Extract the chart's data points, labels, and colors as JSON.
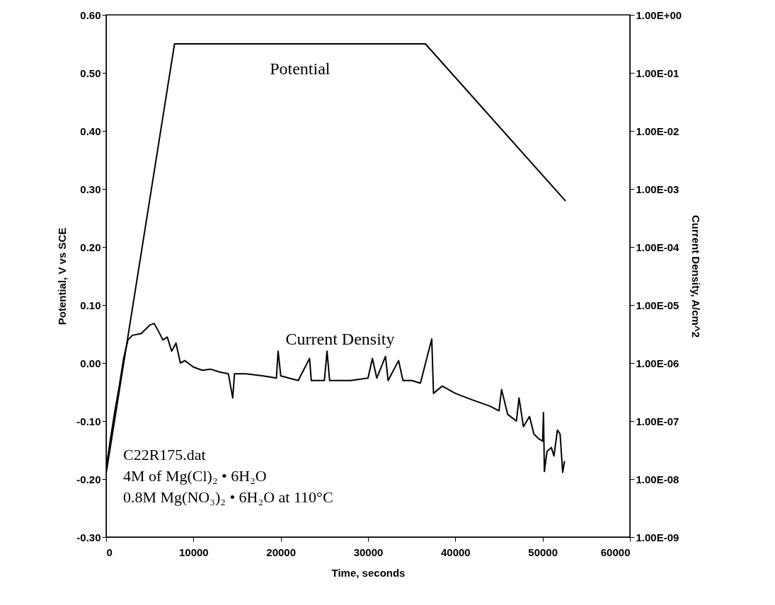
{
  "chart_data": {
    "type": "line",
    "xlabel": "Time, seconds",
    "ylabel": "Potential, V vs SCE",
    "y2label": "Current Density, A/cm^2",
    "xlim": [
      0,
      60000
    ],
    "xticks": [
      0,
      10000,
      20000,
      30000,
      40000,
      50000,
      60000
    ],
    "ylim": [
      -0.3,
      0.6
    ],
    "yticks": [
      {
        "value": -0.3,
        "label": "-0.30"
      },
      {
        "value": -0.2,
        "label": "-0.20"
      },
      {
        "value": -0.1,
        "label": "-0.10"
      },
      {
        "value": 0,
        "label": "0.00"
      },
      {
        "value": 0.1,
        "label": "0.10"
      },
      {
        "value": 0.2,
        "label": "0.20"
      },
      {
        "value": 0.3,
        "label": "0.30"
      },
      {
        "value": 0.4,
        "label": "0.40"
      },
      {
        "value": 0.5,
        "label": "0.50"
      },
      {
        "value": 0.6,
        "label": "0.60"
      }
    ],
    "y2lim": [
      1e-09,
      1
    ],
    "y2ticks": [
      {
        "value": 1e-09,
        "label": "1.00E-09"
      },
      {
        "value": 1e-08,
        "label": "1.00E-08"
      },
      {
        "value": 1e-07,
        "label": "1.00E-07"
      },
      {
        "value": 1e-06,
        "label": "1.00E-06"
      },
      {
        "value": 1e-05,
        "label": "1.00E-05"
      },
      {
        "value": 0.0001,
        "label": "1.00E-04"
      },
      {
        "value": 0.001,
        "label": "1.00E-03"
      },
      {
        "value": 0.01,
        "label": "1.00E-02"
      },
      {
        "value": 0.1,
        "label": "1.00E-01"
      },
      {
        "value": 1,
        "label": "1.00E+00"
      }
    ],
    "log": "y2",
    "grid": false,
    "series": [
      {
        "name": "Potential",
        "color": "#000000",
        "x": [
          0,
          7830,
          36570,
          52580
        ],
        "values": [
          -0.19,
          0.55,
          0.55,
          0.28
        ]
      },
      {
        "name": "Current Density",
        "color": "#000000",
        "axis": "y2",
        "x": [
          0,
          500,
          1000,
          1500,
          2000,
          2500,
          3000,
          4000,
          5000,
          5500,
          6000,
          6500,
          7000,
          7500,
          8000,
          8500,
          9000,
          10000,
          11000,
          12000,
          13000,
          14000,
          14500,
          14700,
          16000,
          18000,
          19500,
          19700,
          20000,
          22000,
          23300,
          23500,
          25000,
          25300,
          25600,
          28000,
          30000,
          30500,
          31000,
          32000,
          32300,
          33500,
          34000,
          35000,
          36000,
          37300,
          37500,
          38500,
          40000,
          42000,
          44000,
          45000,
          45300,
          46000,
          47000,
          47300,
          47800,
          48500,
          49000,
          49500,
          50000,
          50100,
          50200,
          50500,
          51000,
          51300,
          51700,
          52000,
          52300,
          52500
        ],
        "values": [
          1.5e-08,
          5e-08,
          1.5e-07,
          4e-07,
          1.2e-06,
          2.5e-06,
          3e-06,
          3.2e-06,
          4.5e-06,
          4.8e-06,
          3.5e-06,
          2.5e-06,
          2.8e-06,
          1.6e-06,
          2.2e-06,
          1e-06,
          1.1e-06,
          8.5e-07,
          7.5e-07,
          7.8e-07,
          7e-07,
          6.5e-07,
          2.5e-07,
          6.5e-07,
          6.5e-07,
          6e-07,
          5.5e-07,
          1.6e-06,
          6e-07,
          5e-07,
          1.2e-06,
          5e-07,
          5e-07,
          1.6e-06,
          5e-07,
          5e-07,
          5.5e-07,
          1.2e-06,
          5.5e-07,
          1.3e-06,
          5e-07,
          1.1e-06,
          5e-07,
          5e-07,
          4.5e-07,
          2.6e-06,
          3e-07,
          4e-07,
          3e-07,
          2.3e-07,
          1.8e-07,
          1.5e-07,
          3.5e-07,
          1.3e-07,
          1e-07,
          2.5e-07,
          8e-08,
          1.2e-07,
          6e-08,
          5e-08,
          4.5e-08,
          1.4e-07,
          1.35e-08,
          3e-08,
          3.5e-08,
          2.5e-08,
          7e-08,
          6e-08,
          1.3e-08,
          2e-08
        ]
      }
    ],
    "annotations": [
      "C22R175.dat",
      "4M of Mg(Cl)₂ • 6H₂O",
      "0.8M Mg(NO₃)₂ • 6H₂O at 110°C"
    ]
  }
}
